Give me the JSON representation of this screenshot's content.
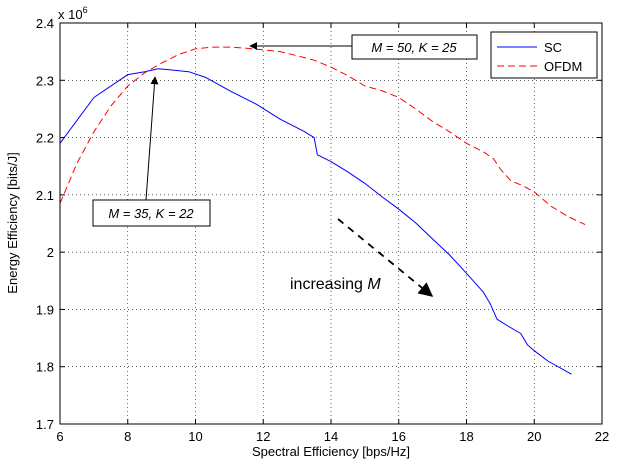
{
  "chart_data": {
    "type": "line",
    "title": "",
    "xlabel": "Spectral Efficiency [bps/Hz]",
    "ylabel": "Energy Efficiency [bits/J]",
    "y_multiplier_base": "x 10",
    "y_multiplier_exp": "6",
    "xlim": [
      6,
      22
    ],
    "ylim": [
      1.7,
      2.4
    ],
    "xticks": [
      6,
      8,
      10,
      12,
      14,
      16,
      18,
      20,
      22
    ],
    "yticks": [
      1.7,
      1.8,
      1.9,
      2.0,
      2.1,
      2.2,
      2.3,
      2.4
    ],
    "xtick_labels": [
      "6",
      "8",
      "10",
      "12",
      "14",
      "16",
      "18",
      "20",
      "22"
    ],
    "ytick_labels": [
      "1.7",
      "1.8",
      "1.9",
      "2",
      "2.1",
      "2.2",
      "2.3",
      "2.4"
    ],
    "grid": true,
    "legend": "top-right",
    "series": [
      {
        "name": "SC",
        "color": "#0000ff",
        "style": "solid",
        "x": [
          6.0,
          7.0,
          8.0,
          8.5,
          8.9,
          9.3,
          9.8,
          10.3,
          11.0,
          11.8,
          12.5,
          13.2,
          13.5,
          13.6,
          14.0,
          14.5,
          15.0,
          15.5,
          16.0,
          16.5,
          17.0,
          17.5,
          18.0,
          18.5,
          18.7,
          18.9,
          19.2,
          19.6,
          19.8,
          20.0,
          20.4,
          21.1
        ],
        "y": [
          2.19,
          2.27,
          2.31,
          2.315,
          2.32,
          2.318,
          2.315,
          2.305,
          2.282,
          2.258,
          2.232,
          2.211,
          2.2,
          2.17,
          2.158,
          2.14,
          2.12,
          2.097,
          2.075,
          2.051,
          2.023,
          1.995,
          1.963,
          1.93,
          1.91,
          1.883,
          1.872,
          1.858,
          1.838,
          1.828,
          1.81,
          1.787
        ]
      },
      {
        "name": "OFDM",
        "color": "#ff0000",
        "style": "dashed",
        "x": [
          6.0,
          6.5,
          7.0,
          7.5,
          8.0,
          8.5,
          9.0,
          9.5,
          10.0,
          10.5,
          11.0,
          11.5,
          12.0,
          12.5,
          13.0,
          13.5,
          14.0,
          14.5,
          15.0,
          15.5,
          16.0,
          16.5,
          17.0,
          17.5,
          18.0,
          18.5,
          18.8,
          19.0,
          19.3,
          19.7,
          20.0,
          20.5,
          21.0,
          21.5
        ],
        "y": [
          2.085,
          2.155,
          2.21,
          2.255,
          2.29,
          2.313,
          2.33,
          2.345,
          2.355,
          2.358,
          2.358,
          2.356,
          2.353,
          2.35,
          2.343,
          2.335,
          2.323,
          2.308,
          2.29,
          2.282,
          2.27,
          2.25,
          2.228,
          2.21,
          2.19,
          2.175,
          2.163,
          2.145,
          2.125,
          2.115,
          2.105,
          2.08,
          2.062,
          2.048
        ]
      }
    ],
    "annotations": [
      {
        "text_prefix": "M",
        "text_rest": " = 50, K = 25"
      },
      {
        "text_prefix": "M",
        "text_rest": " = 35, K = 22"
      },
      {
        "text_plain": "increasing ",
        "text_italic": "M"
      }
    ]
  }
}
